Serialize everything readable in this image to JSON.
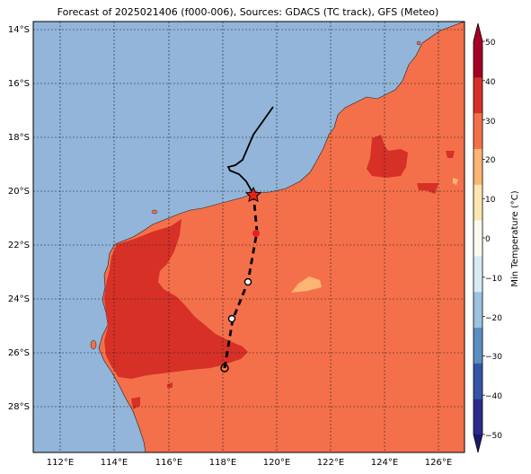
{
  "title": "Forecast of 2025021406 (f000-006), Sources: GDACS (TC track), GFS (Meteo)",
  "lat_ticks": [
    "14°S",
    "16°S",
    "18°S",
    "20°S",
    "22°S",
    "24°S",
    "26°S",
    "28°S"
  ],
  "lon_ticks": [
    "112°E",
    "114°E",
    "116°E",
    "118°E",
    "120°E",
    "122°E",
    "124°E",
    "126°E"
  ],
  "colorbar": {
    "label": "Min Temperature (°C)",
    "ticks": [
      "50",
      "40",
      "30",
      "20",
      "10",
      "0",
      "−10",
      "−20",
      "−30",
      "−40",
      "−50"
    ],
    "colors": [
      "#2b2b8c",
      "#3355a6",
      "#5b8fc2",
      "#9cc3e0",
      "#d8ebf5",
      "#fbfbf3",
      "#fde6b0",
      "#fdb574",
      "#f47048",
      "#d73027",
      "#a50026"
    ]
  },
  "colors": {
    "ocean": "#92b5d9",
    "land_20_30": "#f4704a",
    "land_30_40": "#d73027",
    "land_10_20": "#fdb574"
  },
  "track": {
    "observed_path": "black solid line",
    "forecast_path": "black dashed line",
    "current_marker": "red star"
  }
}
